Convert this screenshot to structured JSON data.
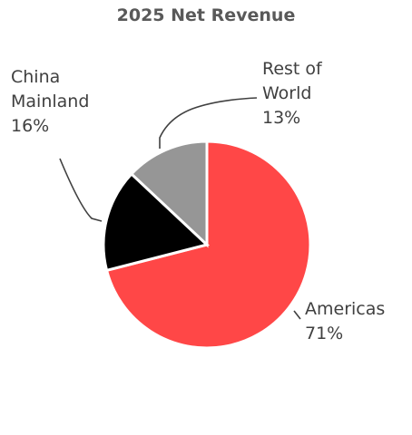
{
  "chart_data": {
    "type": "pie",
    "title": "2025 Net Revenue",
    "slices": [
      {
        "name": "Americas",
        "value": 71,
        "label": "71%",
        "color": "#FF4747"
      },
      {
        "name": "China Mainland",
        "value": 16,
        "label": "16%",
        "color": "#000000"
      },
      {
        "name": "Rest of World",
        "value": 13,
        "label": "13%",
        "color": "#969696"
      }
    ],
    "label_lines": {
      "Americas": [
        "Americas",
        "71%"
      ],
      "China Mainland": [
        "China",
        "Mainland",
        "16%"
      ],
      "Rest of World": [
        "Rest of",
        "World",
        "13%"
      ]
    },
    "legend": "none"
  }
}
